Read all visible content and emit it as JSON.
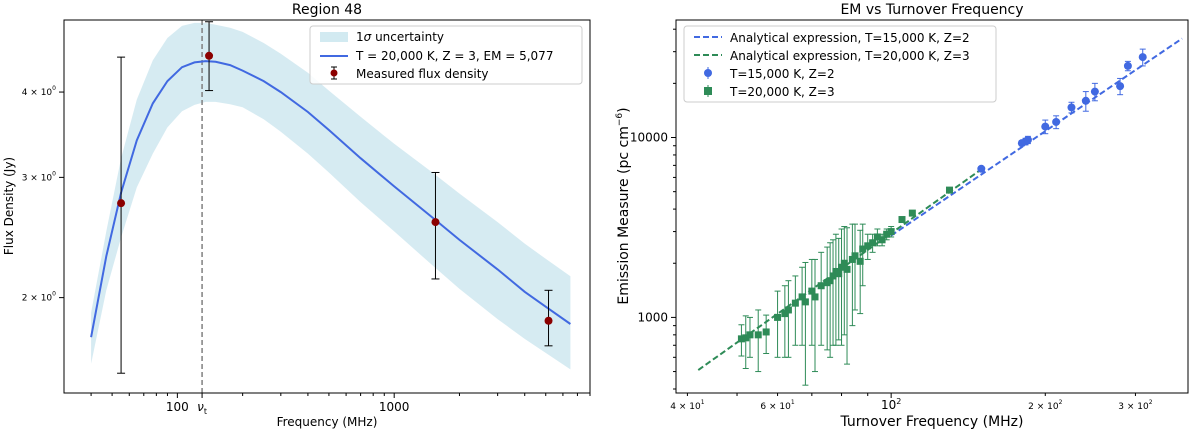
{
  "chart_data": [
    {
      "type": "line",
      "title": "Region 48",
      "xlabel": "Frequency (MHz)",
      "ylabel": "Flux Density (Jy)",
      "xscale": "log",
      "yscale": "log",
      "xlim": [
        30,
        8000
      ],
      "ylim": [
        1.45,
        5.1
      ],
      "x_ticks": [
        {
          "value": 100,
          "label": "100"
        },
        {
          "value": 1000,
          "label": "1000"
        }
      ],
      "x_extra_tick": {
        "value": 130,
        "label_main": "ν",
        "label_sub": "t"
      },
      "y_ticks": [
        {
          "value": 2,
          "label_mant": "2 × 10",
          "label_exp": "0"
        },
        {
          "value": 3,
          "label_mant": "3 × 10",
          "label_exp": "0"
        },
        {
          "value": 4,
          "label_mant": "4 × 10",
          "label_exp": "0"
        }
      ],
      "legend_position": "top-right",
      "legend": {
        "band_prefix": "1",
        "band_sigma": "σ",
        "band_suffix": " uncertainty",
        "model": "T = 20,000 K, Z = 3, EM = 5,077",
        "points": "Measured flux density"
      },
      "turnover_frequency_mhz": 130,
      "model_curve": {
        "x": [
          40,
          47,
          55,
          65,
          77,
          90,
          105,
          120,
          135,
          150,
          175,
          200,
          250,
          300,
          400,
          500,
          700,
          1000,
          1500,
          2000,
          3000,
          4000,
          5000,
          6500
        ],
        "y": [
          1.75,
          2.3,
          2.85,
          3.4,
          3.85,
          4.15,
          4.35,
          4.42,
          4.44,
          4.43,
          4.38,
          4.3,
          4.15,
          4.0,
          3.74,
          3.52,
          3.2,
          2.91,
          2.62,
          2.43,
          2.2,
          2.04,
          1.94,
          1.83
        ]
      },
      "uncertainty_band": {
        "x": [
          40,
          47,
          55,
          65,
          77,
          90,
          105,
          120,
          135,
          150,
          175,
          200,
          250,
          300,
          400,
          500,
          700,
          1000,
          1500,
          2000,
          3000,
          4000,
          5000,
          6500
        ],
        "lower": [
          1.6,
          2.05,
          2.45,
          2.9,
          3.25,
          3.55,
          3.75,
          3.83,
          3.87,
          3.87,
          3.84,
          3.8,
          3.65,
          3.5,
          3.25,
          3.05,
          2.76,
          2.5,
          2.23,
          2.06,
          1.86,
          1.74,
          1.66,
          1.57
        ],
        "upper": [
          1.9,
          2.5,
          3.2,
          3.9,
          4.45,
          4.8,
          5.0,
          5.05,
          5.05,
          5.02,
          4.97,
          4.9,
          4.72,
          4.55,
          4.27,
          4.02,
          3.68,
          3.36,
          3.05,
          2.84,
          2.58,
          2.4,
          2.28,
          2.15
        ]
      },
      "measured": {
        "x": [
          55,
          140,
          1550,
          5150
        ],
        "y": [
          2.75,
          4.52,
          2.58,
          1.85
        ],
        "err_low": [
          1.2,
          0.5,
          0.45,
          0.15
        ],
        "err_high": [
          1.75,
          0.55,
          0.47,
          0.2
        ]
      }
    },
    {
      "type": "scatter",
      "title": "EM vs Turnover Frequency",
      "xlabel": "Turnover Frequency (MHz)",
      "ylabel_prefix": "Emission Measure (pc cm",
      "ylabel_exp": "−6",
      "ylabel_suffix": ")",
      "xscale": "log",
      "yscale": "log",
      "xlim": [
        38,
        380
      ],
      "ylim": [
        380,
        45000
      ],
      "x_ticks": [
        {
          "value": 40,
          "label_mant": "4 × 10",
          "label_exp": "1"
        },
        {
          "value": 60,
          "label_mant": "6 × 10",
          "label_exp": "1"
        },
        {
          "value": 100,
          "label_mant": "10",
          "label_exp": "2"
        },
        {
          "value": 200,
          "label_mant": "2 × 10",
          "label_exp": "2"
        },
        {
          "value": 300,
          "label_mant": "3 × 10",
          "label_exp": "2"
        }
      ],
      "y_ticks": [
        {
          "value": 1000,
          "label": "1000"
        },
        {
          "value": 10000,
          "label": "10000"
        }
      ],
      "legend_position": "top-left",
      "series": [
        {
          "name": "T=15,000 K, Z=2",
          "marker": "circle",
          "color": "#4169e1",
          "line_label": "Analytical expression, T=15,000 K, Z=2",
          "line_x": [
            100,
            370
          ],
          "line_y": [
            2850,
            35500
          ],
          "x": [
            150,
            180,
            183,
            185,
            200,
            210,
            225,
            240,
            250,
            280,
            290,
            310
          ],
          "y": [
            6700,
            9300,
            9500,
            9700,
            11500,
            12200,
            14700,
            16000,
            18000,
            19300,
            25000,
            28000
          ],
          "err": [
            200,
            300,
            400,
            450,
            1000,
            1000,
            1000,
            2000,
            2000,
            2000,
            1500,
            3000
          ]
        },
        {
          "name": "T=20,000 K, Z=3",
          "marker": "square",
          "color": "#2e8b57",
          "line_label": "Analytical expression, T=20,000 K, Z=3",
          "line_x": [
            42,
            150
          ],
          "line_y": [
            510,
            6650
          ],
          "x": [
            51,
            52,
            53,
            55,
            57,
            60,
            62,
            63,
            65,
            67,
            68,
            70,
            71,
            73,
            75,
            76,
            77,
            78,
            79,
            80,
            81,
            82,
            84,
            85,
            87,
            88,
            90,
            92,
            94,
            96,
            98,
            100,
            105,
            110,
            130
          ],
          "y": [
            760,
            770,
            800,
            800,
            830,
            1000,
            1050,
            1100,
            1200,
            1300,
            1220,
            1400,
            1300,
            1500,
            1560,
            1600,
            1700,
            1800,
            1750,
            1900,
            2000,
            1850,
            2100,
            2200,
            2050,
            2400,
            2500,
            2600,
            2800,
            2700,
            2900,
            3000,
            3500,
            3800,
            5100
          ],
          "err": [
            150,
            250,
            200,
            300,
            200,
            400,
            450,
            500,
            500,
            600,
            800,
            700,
            800,
            800,
            900,
            1000,
            1000,
            1100,
            1000,
            1200,
            1200,
            1300,
            1200,
            1100,
            1000,
            900,
            400,
            300,
            300,
            200,
            200,
            200,
            100,
            100,
            100
          ]
        }
      ]
    }
  ]
}
